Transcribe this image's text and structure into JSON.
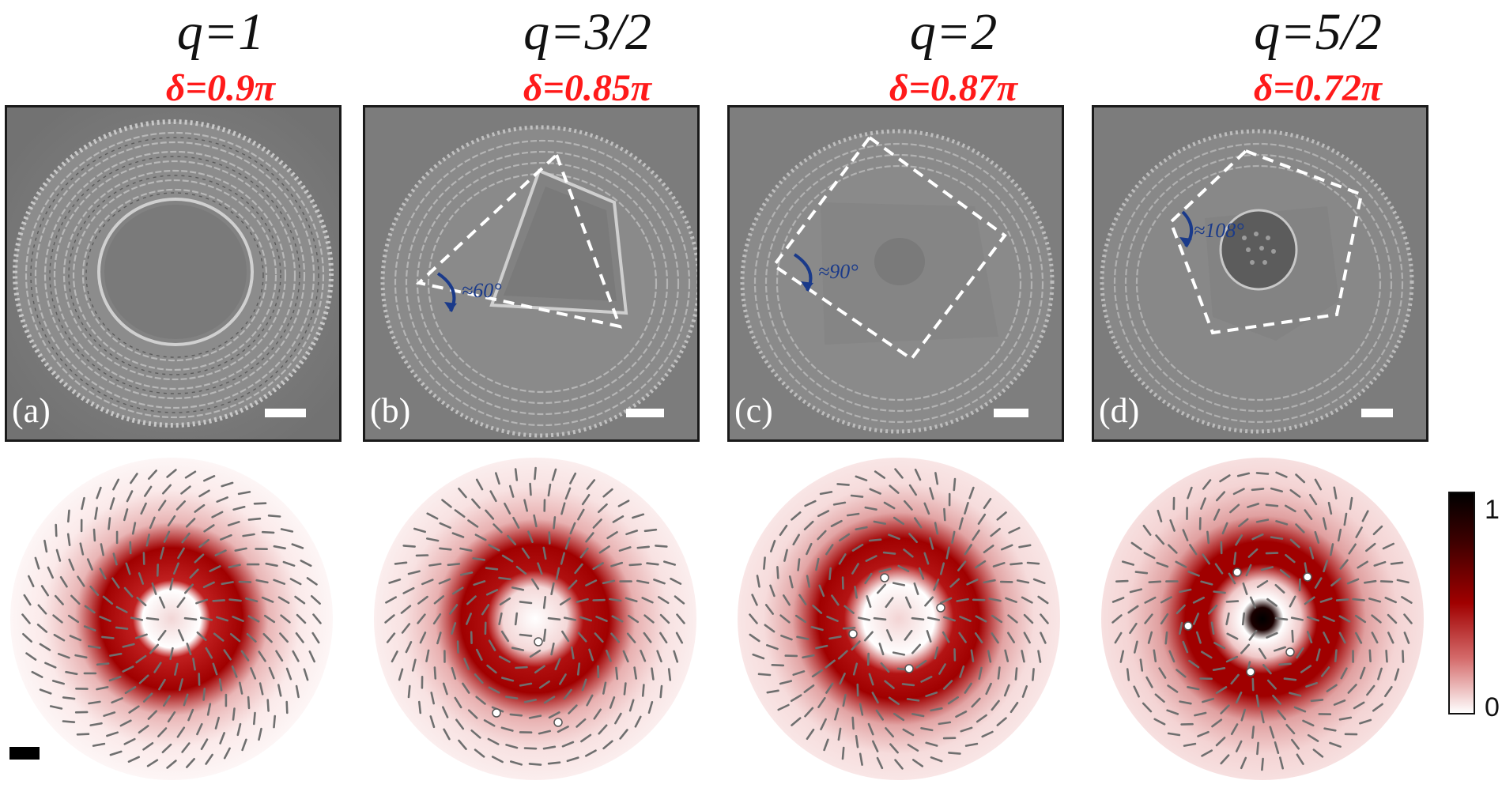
{
  "panels": [
    {
      "q": "q=1",
      "delta": "δ=0.9π",
      "tag": "(a)",
      "angle": ""
    },
    {
      "q": "q=3/2",
      "delta": "δ=0.85π",
      "tag": "(b)",
      "angle": "≈60°"
    },
    {
      "q": "q=2",
      "delta": "δ=0.87π",
      "tag": "(c)",
      "angle": "≈90°"
    },
    {
      "q": "q=5/2",
      "delta": "δ=0.72π",
      "tag": "(d)",
      "angle": "≈108°"
    }
  ],
  "colorbar": {
    "max": "1",
    "min": "0"
  },
  "colors": {
    "delta_text": "#ff1a1a",
    "annotation": "#1a3a8a",
    "accent_red": "#b00000"
  }
}
